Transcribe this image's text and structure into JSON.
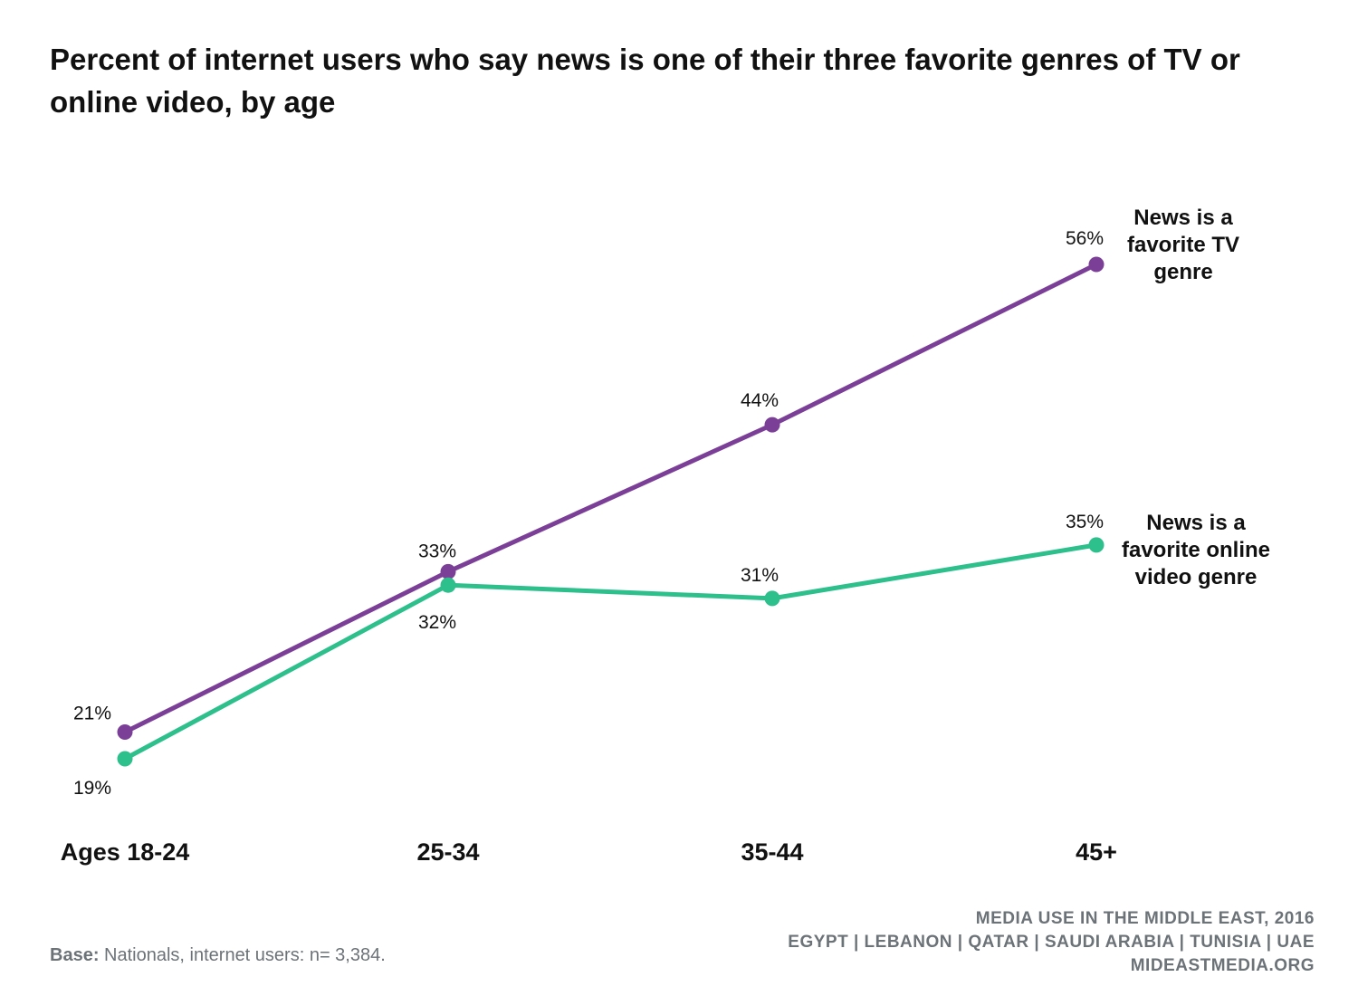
{
  "title": "Percent of internet users who say news is one of their three favorite genres of TV or online video, by age",
  "chart_data": {
    "type": "line",
    "categories": [
      "Ages 18-24",
      "25-34",
      "35-44",
      "45+"
    ],
    "series": [
      {
        "name": "News is a favorite TV genre",
        "label_lines": [
          "News is a",
          "favorite TV",
          "genre"
        ],
        "values": [
          21,
          33,
          44,
          56
        ],
        "value_labels": [
          "21%",
          "33%",
          "44%",
          "56%"
        ],
        "color": "#7b3f98"
      },
      {
        "name": "News is a favorite online video genre",
        "label_lines": [
          "News is a",
          "favorite online",
          "video genre"
        ],
        "values": [
          19,
          32,
          31,
          35
        ],
        "value_labels": [
          "19%",
          "32%",
          "31%",
          "35%"
        ],
        "color": "#2dbf8c"
      }
    ],
    "ylim": [
      0,
      70
    ],
    "grid": false,
    "legend": "direct labels at right end of lines"
  },
  "footer": {
    "base_label": "Base:",
    "base_text": " Nationals, internet users: n= 3,384.",
    "source_lines": [
      "MEDIA USE IN THE MIDDLE EAST, 2016",
      "EGYPT | LEBANON | QATAR | SAUDI ARABIA | TUNISIA | UAE",
      "MIDEASTMEDIA.ORG"
    ]
  }
}
